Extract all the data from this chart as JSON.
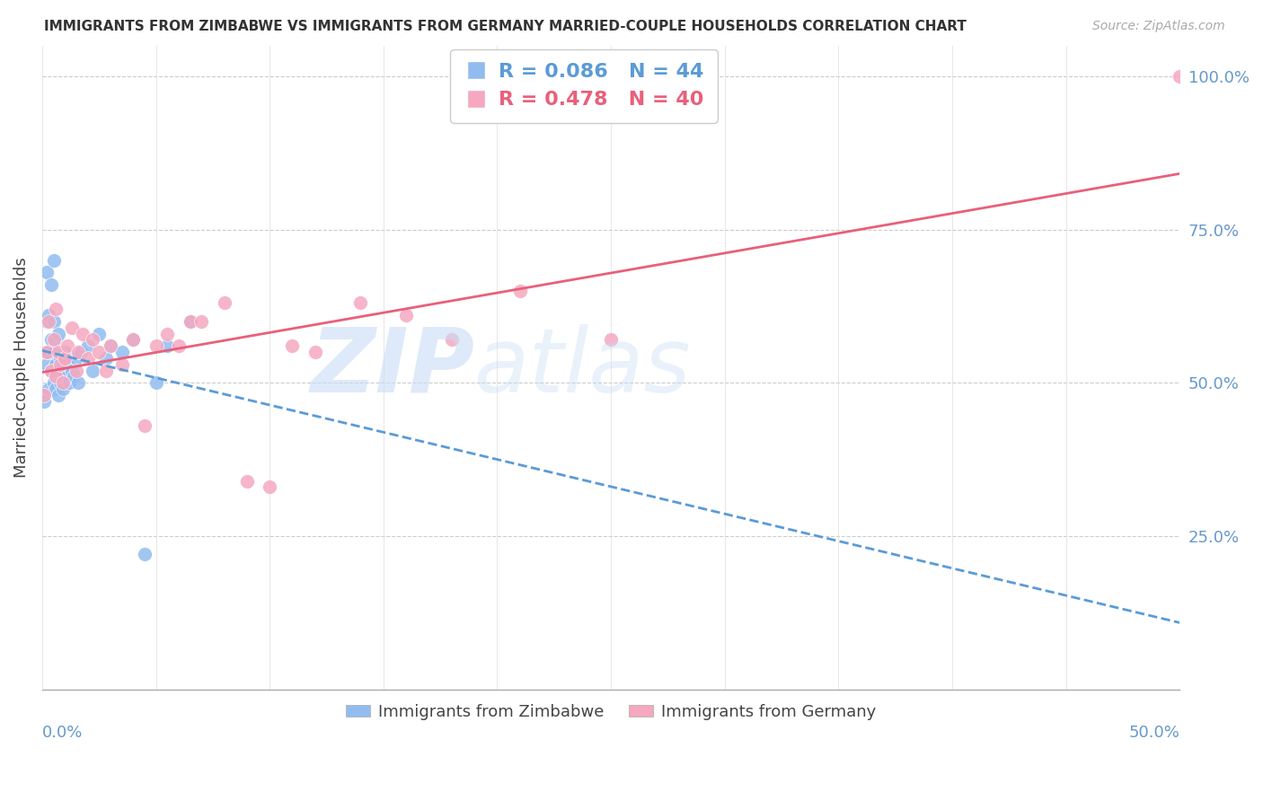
{
  "title": "IMMIGRANTS FROM ZIMBABWE VS IMMIGRANTS FROM GERMANY MARRIED-COUPLE HOUSEHOLDS CORRELATION CHART",
  "source": "Source: ZipAtlas.com",
  "ylabel": "Married-couple Households",
  "right_yticks": [
    "100.0%",
    "75.0%",
    "50.0%",
    "25.0%"
  ],
  "right_ytick_vals": [
    1.0,
    0.75,
    0.5,
    0.25
  ],
  "legend1_label": "R = 0.086   N = 44",
  "legend2_label": "R = 0.478   N = 40",
  "zimbabwe_color": "#92bcf0",
  "germany_color": "#f5a8c0",
  "zimbabwe_line_color": "#5b9bd5",
  "germany_line_color": "#e8607a",
  "xlim": [
    0.0,
    0.5
  ],
  "ylim": [
    0.0,
    1.05
  ],
  "zimbabwe_x": [
    0.001,
    0.002,
    0.002,
    0.002,
    0.003,
    0.003,
    0.003,
    0.004,
    0.004,
    0.004,
    0.005,
    0.005,
    0.005,
    0.005,
    0.006,
    0.006,
    0.006,
    0.007,
    0.007,
    0.007,
    0.008,
    0.008,
    0.009,
    0.009,
    0.01,
    0.01,
    0.011,
    0.012,
    0.013,
    0.014,
    0.015,
    0.016,
    0.017,
    0.02,
    0.022,
    0.025,
    0.028,
    0.03,
    0.035,
    0.04,
    0.045,
    0.05,
    0.055,
    0.065
  ],
  "zimbabwe_y": [
    0.47,
    0.53,
    0.6,
    0.68,
    0.49,
    0.55,
    0.61,
    0.52,
    0.57,
    0.66,
    0.5,
    0.55,
    0.6,
    0.7,
    0.49,
    0.53,
    0.57,
    0.48,
    0.52,
    0.58,
    0.5,
    0.54,
    0.49,
    0.53,
    0.51,
    0.55,
    0.53,
    0.5,
    0.52,
    0.51,
    0.54,
    0.5,
    0.55,
    0.56,
    0.52,
    0.58,
    0.54,
    0.56,
    0.55,
    0.57,
    0.22,
    0.5,
    0.56,
    0.6
  ],
  "germany_x": [
    0.001,
    0.002,
    0.003,
    0.004,
    0.005,
    0.006,
    0.006,
    0.007,
    0.008,
    0.009,
    0.01,
    0.011,
    0.013,
    0.015,
    0.016,
    0.018,
    0.02,
    0.022,
    0.025,
    0.028,
    0.03,
    0.035,
    0.04,
    0.045,
    0.05,
    0.055,
    0.06,
    0.065,
    0.07,
    0.08,
    0.09,
    0.1,
    0.11,
    0.12,
    0.14,
    0.16,
    0.18,
    0.21,
    0.25,
    0.5
  ],
  "germany_y": [
    0.48,
    0.55,
    0.6,
    0.52,
    0.57,
    0.51,
    0.62,
    0.55,
    0.53,
    0.5,
    0.54,
    0.56,
    0.59,
    0.52,
    0.55,
    0.58,
    0.54,
    0.57,
    0.55,
    0.52,
    0.56,
    0.53,
    0.57,
    0.43,
    0.56,
    0.58,
    0.56,
    0.6,
    0.6,
    0.63,
    0.34,
    0.33,
    0.56,
    0.55,
    0.63,
    0.61,
    0.57,
    0.65,
    0.57,
    1.0
  ]
}
